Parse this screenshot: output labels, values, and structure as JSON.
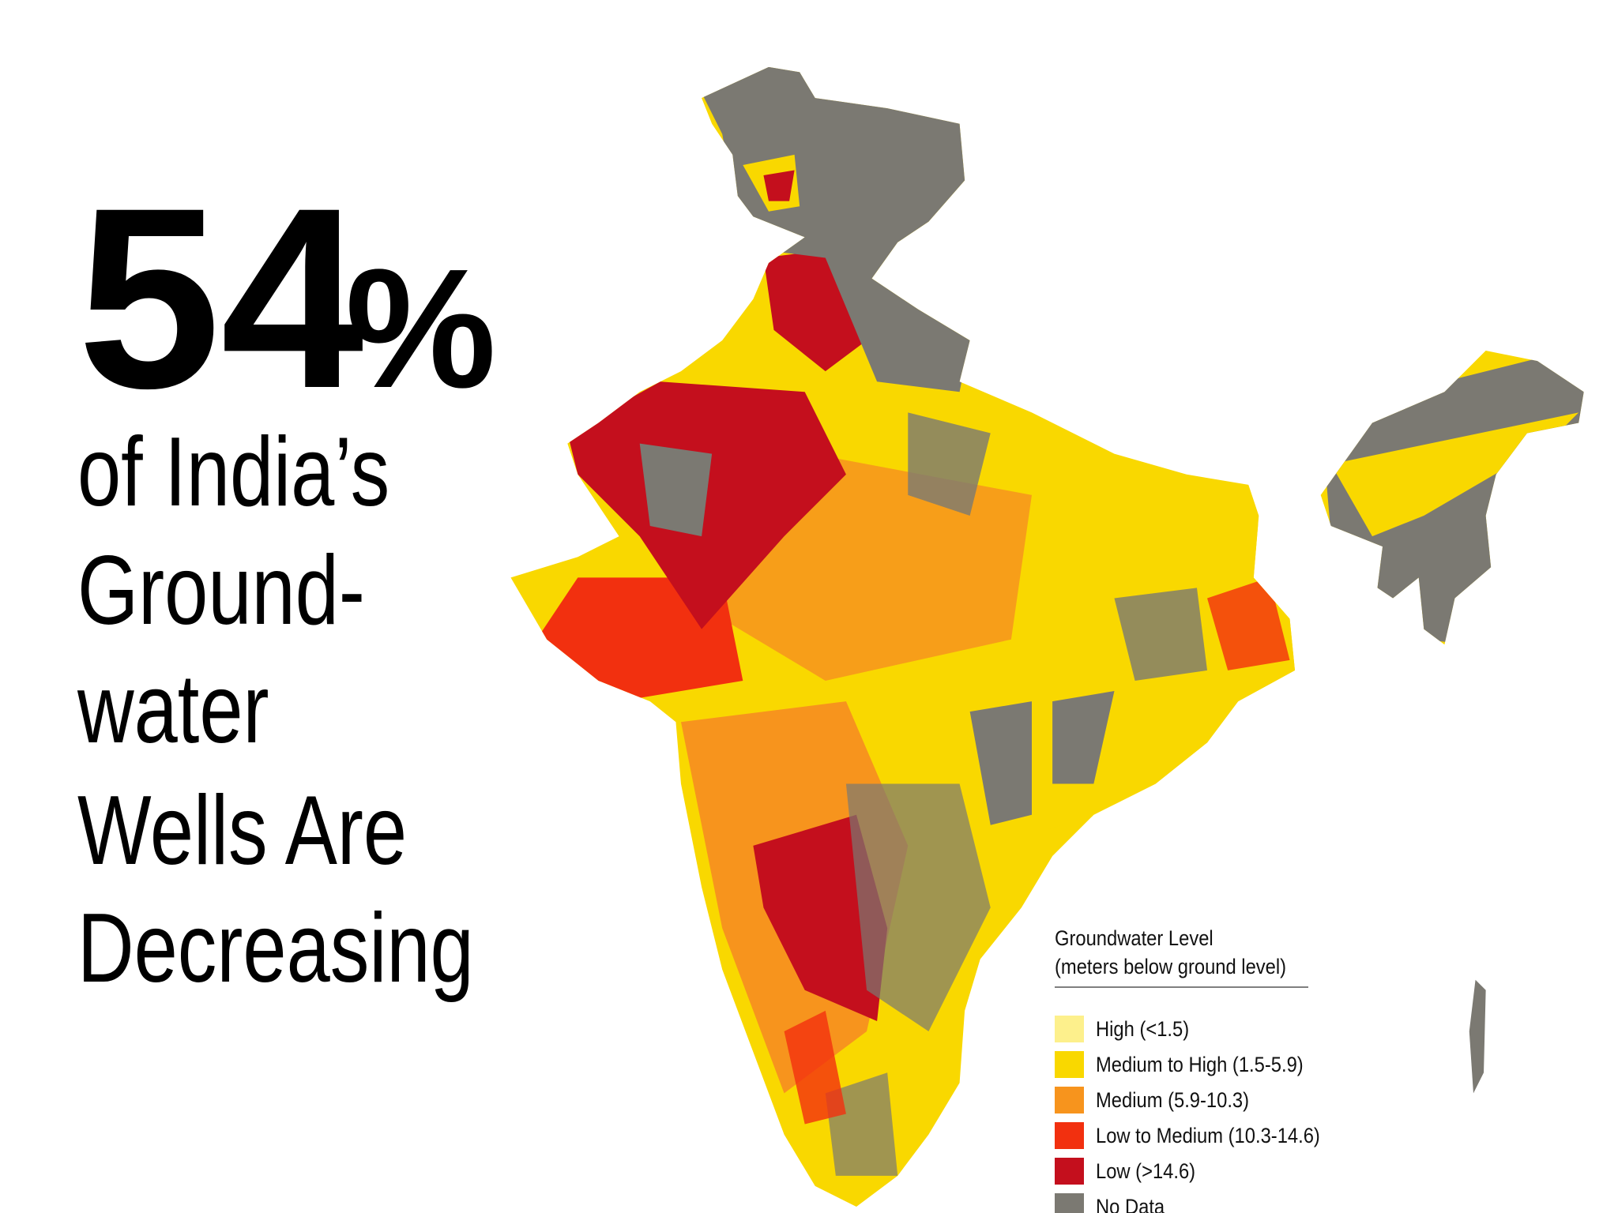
{
  "headline": {
    "number": "54",
    "symbol": "%",
    "lines": [
      "of India’s",
      "Ground-",
      "water",
      "Wells Are",
      "Decreasing"
    ]
  },
  "legend": {
    "title": "Groundwater Level",
    "subtitle": "(meters below ground level)",
    "items": [
      {
        "label": "High (<1.5)",
        "color": "#fdf08c"
      },
      {
        "label": "Medium to High (1.5-5.9)",
        "color": "#f9d800"
      },
      {
        "label": "Medium (5.9-10.3)",
        "color": "#f7941d"
      },
      {
        "label": "Low to Medium (10.3-14.6)",
        "color": "#f2300f"
      },
      {
        "label": "Low (>14.6)",
        "color": "#c40f1d"
      },
      {
        "label": "No Data",
        "color": "#7b7972"
      }
    ]
  }
}
